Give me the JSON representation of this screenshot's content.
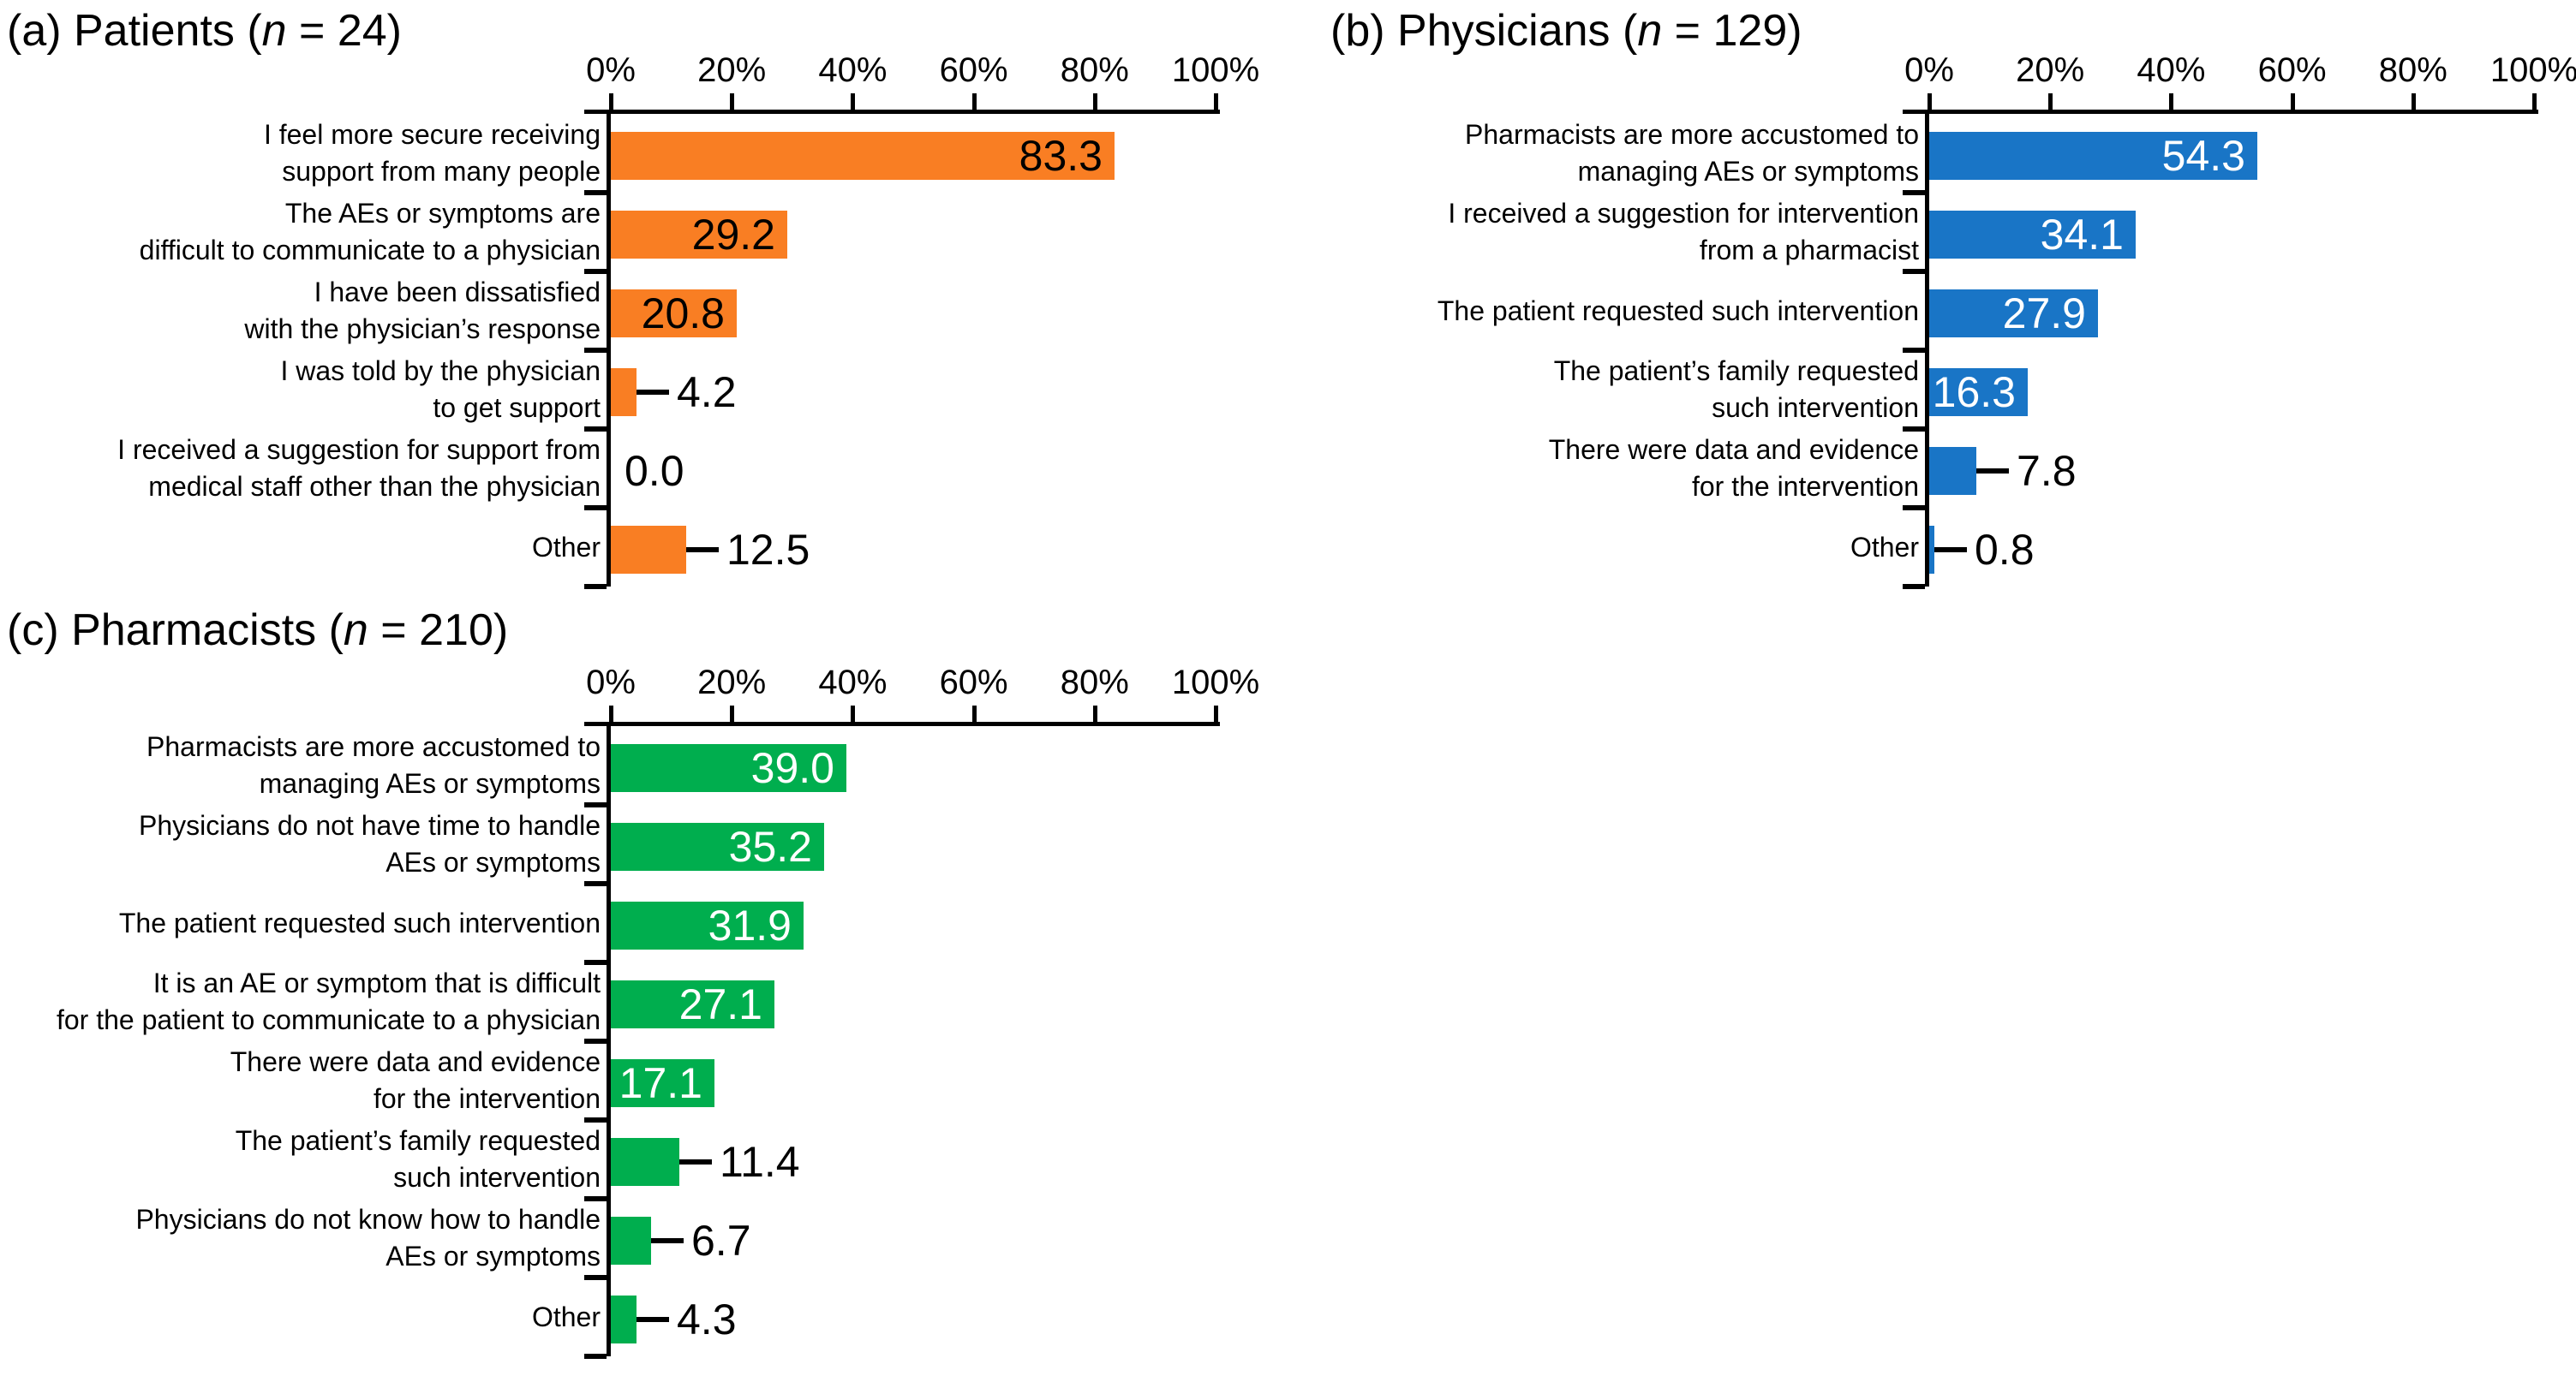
{
  "figure": {
    "background": "#FFFFFF"
  },
  "chart_data": [
    {
      "panel": "a",
      "type": "bar",
      "orientation": "horizontal",
      "title": {
        "full": "(a) Patients (n = 24)",
        "prefix": "(a) Patients (",
        "n": "n",
        "suffix": " = 24)"
      },
      "n_value": 24,
      "bar_color": "#F97E23",
      "inside_label_color": "#000000",
      "outside_label_color": "#000000",
      "axis": {
        "xlim": [
          0,
          100
        ],
        "tick_labels": [
          "0%",
          "20%",
          "40%",
          "60%",
          "80%",
          "100%"
        ],
        "grid": false,
        "position": "top"
      },
      "categories": [
        [
          "I feel more secure receiving",
          "support from many people"
        ],
        [
          "The AEs or symptoms are",
          "difficult to communicate to a physician"
        ],
        [
          "I have been dissatisfied",
          "with the physician’s response"
        ],
        [
          "I was told by the physician",
          "to get support"
        ],
        [
          "I received a suggestion for support from",
          "medical staff other than the physician"
        ],
        [
          "Other"
        ]
      ],
      "values": [
        83.3,
        29.2,
        20.8,
        4.2,
        0.0,
        12.5
      ],
      "value_labels": [
        "83.3",
        "29.2",
        "20.8",
        "4.2",
        "0.0",
        "12.5"
      ]
    },
    {
      "panel": "b",
      "type": "bar",
      "orientation": "horizontal",
      "title": {
        "full": "(b) Physicians (n = 129)",
        "prefix": "(b) Physicians (",
        "n": "n",
        "suffix": " = 129)"
      },
      "n_value": 129,
      "bar_color": "#1975C6",
      "inside_label_color": "#FFFFFF",
      "outside_label_color": "#000000",
      "axis": {
        "xlim": [
          0,
          100
        ],
        "tick_labels": [
          "0%",
          "20%",
          "40%",
          "60%",
          "80%",
          "100%"
        ],
        "grid": false,
        "position": "top"
      },
      "categories": [
        [
          "Pharmacists are more accustomed to",
          "managing AEs or symptoms"
        ],
        [
          "I received a suggestion for intervention",
          "from a pharmacist"
        ],
        [
          "The patient requested such intervention"
        ],
        [
          "The patient’s family requested",
          "such intervention"
        ],
        [
          "There were data and evidence",
          "for the intervention"
        ],
        [
          "Other"
        ]
      ],
      "values": [
        54.3,
        34.1,
        27.9,
        16.3,
        7.8,
        0.8
      ],
      "value_labels": [
        "54.3",
        "34.1",
        "27.9",
        "16.3",
        "7.8",
        "0.8"
      ]
    },
    {
      "panel": "c",
      "type": "bar",
      "orientation": "horizontal",
      "title": {
        "full": "(c) Pharmacists (n = 210)",
        "prefix": "(c) Pharmacists (",
        "n": "n",
        "suffix": " = 210)"
      },
      "n_value": 210,
      "bar_color": "#00AE4E",
      "inside_label_color": "#FFFFFF",
      "outside_label_color": "#000000",
      "axis": {
        "xlim": [
          0,
          100
        ],
        "tick_labels": [
          "0%",
          "20%",
          "40%",
          "60%",
          "80%",
          "100%"
        ],
        "grid": false,
        "position": "top"
      },
      "categories": [
        [
          "Pharmacists are more accustomed to",
          "managing AEs or symptoms"
        ],
        [
          "Physicians do not have time to handle",
          "AEs or symptoms"
        ],
        [
          "The patient requested such intervention"
        ],
        [
          "It is an AE or symptom that is difficult",
          "for the patient to communicate to a physician"
        ],
        [
          "There were data and evidence",
          "for the intervention"
        ],
        [
          "The patient’s family requested",
          "such intervention"
        ],
        [
          "Physicians do not know how to handle",
          "AEs or symptoms"
        ],
        [
          "Other"
        ]
      ],
      "values": [
        39.0,
        35.2,
        31.9,
        27.1,
        17.1,
        11.4,
        6.7,
        4.3
      ],
      "value_labels": [
        "39.0",
        "35.2",
        "31.9",
        "27.1",
        "17.1",
        "11.4",
        "6.7",
        "4.3"
      ]
    }
  ]
}
